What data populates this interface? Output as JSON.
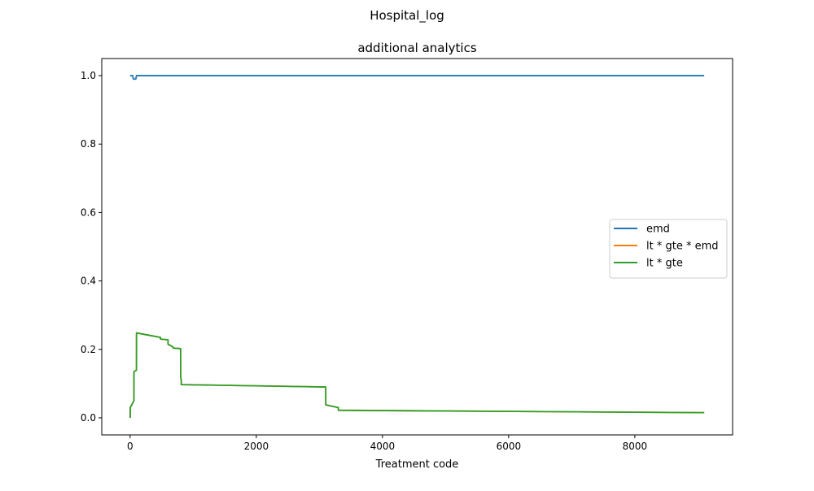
{
  "chart_data": {
    "type": "line",
    "suptitle": "Hospital_log",
    "title": "additional analytics",
    "xlabel": "Treatment code",
    "ylabel": "",
    "xlim": [
      -450,
      9550
    ],
    "ylim": [
      -0.05,
      1.05
    ],
    "xticks": [
      0,
      2000,
      4000,
      6000,
      8000
    ],
    "yticks": [
      0.0,
      0.2,
      0.4,
      0.6,
      0.8,
      1.0
    ],
    "xtick_labels": [
      "0",
      "2000",
      "4000",
      "6000",
      "8000"
    ],
    "ytick_labels": [
      "0.0",
      "0.2",
      "0.4",
      "0.6",
      "0.8",
      "1.0"
    ],
    "grid": false,
    "legend_position": "center-right",
    "series": [
      {
        "name": "emd",
        "color": "#1f77b4",
        "x": [
          0,
          40,
          50,
          60,
          90,
          100,
          9100
        ],
        "y": [
          1.0,
          1.0,
          0.99,
          0.99,
          0.99,
          1.0,
          1.0
        ]
      },
      {
        "name": "lt * gte * emd",
        "color": "#ff7f0e",
        "x": [
          0,
          1,
          2,
          60,
          61,
          90,
          91,
          100,
          101,
          480,
          481,
          600,
          601,
          680,
          681,
          800,
          801,
          810,
          811,
          3100,
          3101,
          3300,
          3301,
          9100
        ],
        "y": [
          0.0,
          0.001,
          0.03,
          0.05,
          0.135,
          0.138,
          0.138,
          0.139,
          0.248,
          0.235,
          0.23,
          0.228,
          0.215,
          0.207,
          0.204,
          0.202,
          0.12,
          0.11,
          0.097,
          0.09,
          0.038,
          0.03,
          0.022,
          0.015
        ]
      },
      {
        "name": "lt * gte",
        "color": "#2ca02c",
        "x": [
          0,
          1,
          2,
          60,
          61,
          90,
          91,
          100,
          101,
          480,
          481,
          600,
          601,
          680,
          681,
          800,
          801,
          810,
          811,
          3100,
          3101,
          3300,
          3301,
          9100
        ],
        "y": [
          0.0,
          0.001,
          0.03,
          0.05,
          0.135,
          0.138,
          0.138,
          0.139,
          0.248,
          0.235,
          0.23,
          0.228,
          0.215,
          0.207,
          0.204,
          0.202,
          0.12,
          0.11,
          0.097,
          0.09,
          0.038,
          0.03,
          0.022,
          0.015
        ]
      }
    ]
  }
}
